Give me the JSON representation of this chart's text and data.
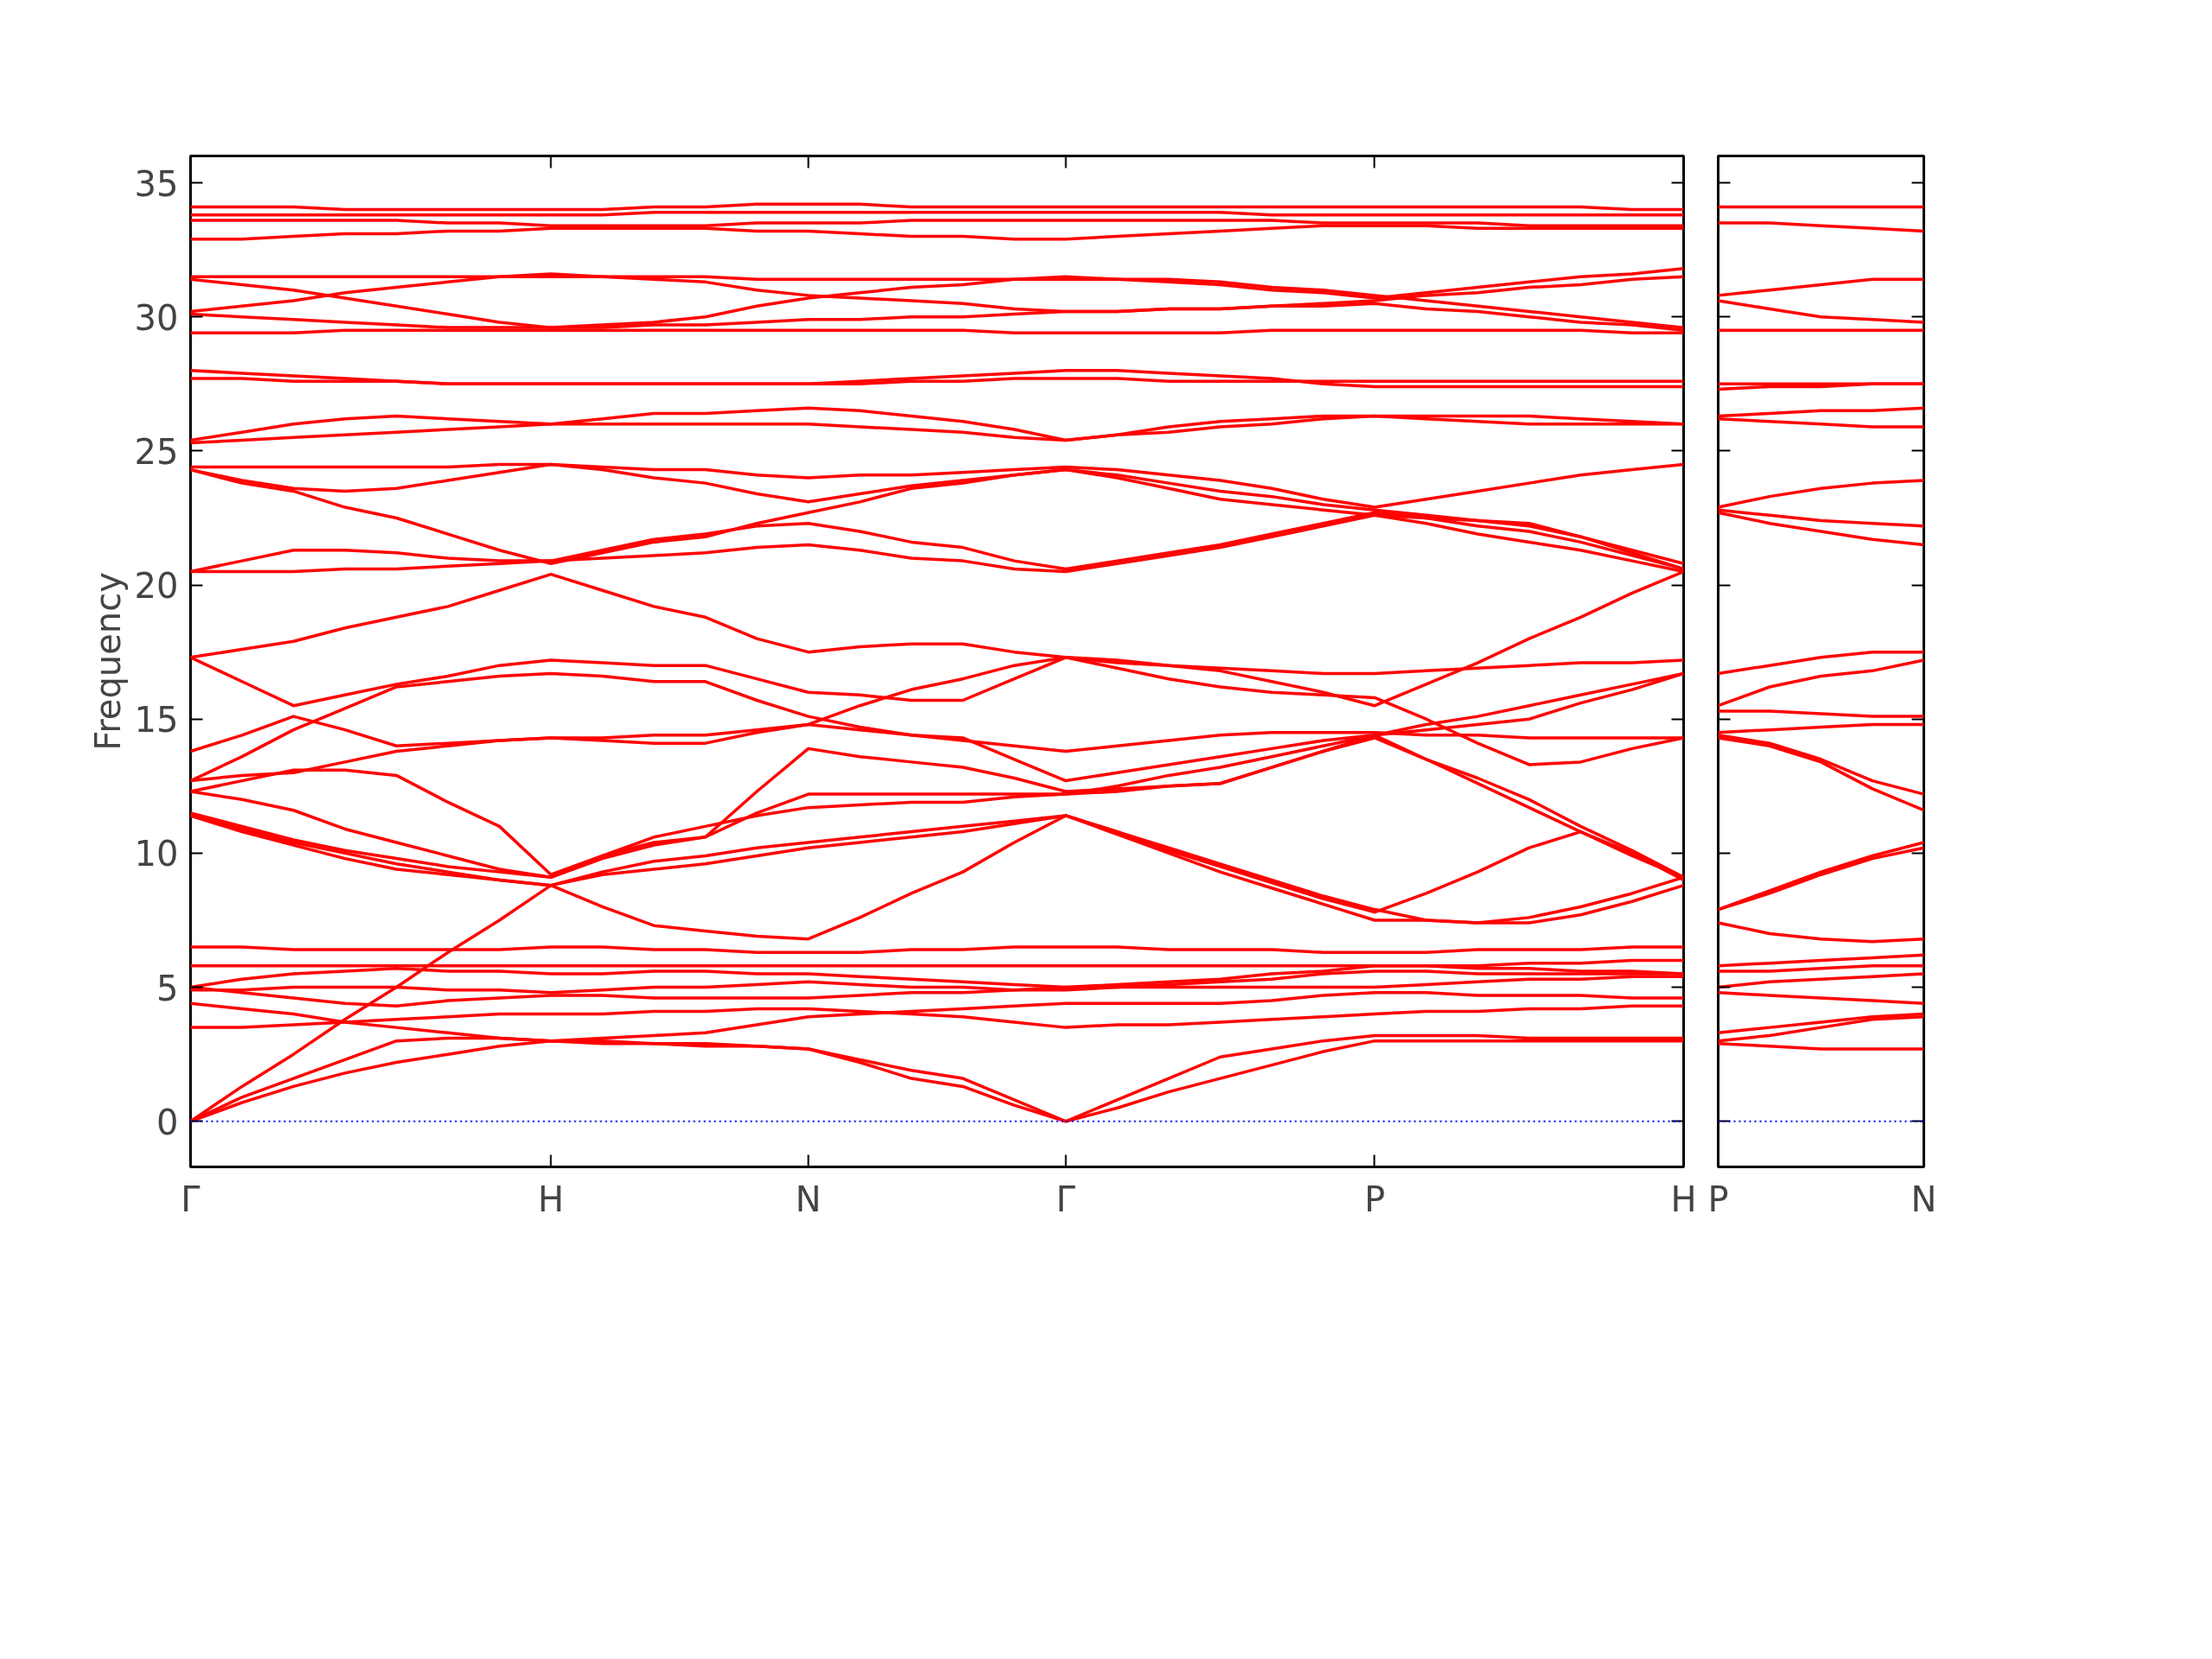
{
  "chart_data": [
    {
      "type": "line",
      "ylabel": "Frequency",
      "ylim": [
        -1.7,
        36
      ],
      "yticks": [
        0,
        5,
        10,
        15,
        20,
        25,
        30,
        35
      ],
      "categories": [
        "Γ",
        null,
        null,
        null,
        null,
        null,
        null,
        "H",
        null,
        null,
        null,
        null,
        "N",
        null,
        null,
        null,
        null,
        "Γ",
        null,
        null,
        null,
        null,
        null,
        "P",
        null,
        null,
        null,
        null,
        null,
        "H"
      ],
      "grid": false,
      "line_style": "solid",
      "marker": "none",
      "ref_lines": [
        {
          "axis": "y",
          "value": 0,
          "color": "#0000ff",
          "line_style": "dotted"
        }
      ],
      "series": [
        {
          "color": "#ff0000",
          "values": [
            34.1,
            34.1,
            34.1,
            34.0,
            34.0,
            34.0,
            34.0,
            34.0,
            34.0,
            34.1,
            34.1,
            34.2,
            34.2,
            34.2,
            34.1,
            34.1,
            34.1,
            34.1,
            34.1,
            34.1,
            34.1,
            34.1,
            34.1,
            34.1,
            34.1,
            34.1,
            34.1,
            34.1,
            34.0,
            34.0
          ]
        },
        {
          "color": "#ff0000",
          "values": [
            33.8,
            33.8,
            33.8,
            33.8,
            33.8,
            33.8,
            33.8,
            33.8,
            33.8,
            33.9,
            33.9,
            33.9,
            33.9,
            33.9,
            33.9,
            33.9,
            33.9,
            33.9,
            33.9,
            33.9,
            33.9,
            33.8,
            33.8,
            33.8,
            33.8,
            33.8,
            33.8,
            33.8,
            33.8,
            33.8
          ]
        },
        {
          "color": "#ff0000",
          "values": [
            33.6,
            33.6,
            33.6,
            33.6,
            33.6,
            33.5,
            33.5,
            33.4,
            33.4,
            33.4,
            33.4,
            33.5,
            33.5,
            33.5,
            33.6,
            33.6,
            33.6,
            33.6,
            33.6,
            33.6,
            33.6,
            33.6,
            33.5,
            33.5,
            33.5,
            33.5,
            33.4,
            33.4,
            33.4,
            33.4
          ]
        },
        {
          "color": "#ff0000",
          "values": [
            32.9,
            32.9,
            33.0,
            33.1,
            33.1,
            33.2,
            33.2,
            33.3,
            33.3,
            33.3,
            33.3,
            33.2,
            33.2,
            33.1,
            33.0,
            33.0,
            32.9,
            32.9,
            33.0,
            33.1,
            33.2,
            33.3,
            33.4,
            33.4,
            33.4,
            33.3,
            33.3,
            33.3,
            33.3,
            33.3
          ]
        },
        {
          "color": "#ff0000",
          "values": [
            31.5,
            31.5,
            31.5,
            31.5,
            31.5,
            31.5,
            31.5,
            31.5,
            31.5,
            31.5,
            31.5,
            31.4,
            31.4,
            31.4,
            31.4,
            31.4,
            31.4,
            31.4,
            31.4,
            31.3,
            31.2,
            31.0,
            30.9,
            30.7,
            30.9,
            31.1,
            31.3,
            31.5,
            31.6,
            31.8
          ]
        },
        {
          "color": "#ff0000",
          "values": [
            31.4,
            31.2,
            31.0,
            30.7,
            30.4,
            30.1,
            29.8,
            29.6,
            29.7,
            29.8,
            30.0,
            30.4,
            30.7,
            30.9,
            31.1,
            31.2,
            31.4,
            31.5,
            31.4,
            31.4,
            31.3,
            31.1,
            31.0,
            30.8,
            30.6,
            30.4,
            30.2,
            30.0,
            29.8,
            29.6
          ]
        },
        {
          "color": "#ff0000",
          "values": [
            30.2,
            30.4,
            30.6,
            30.9,
            31.1,
            31.3,
            31.5,
            31.6,
            31.5,
            31.4,
            31.3,
            31.0,
            30.8,
            30.7,
            30.6,
            30.5,
            30.3,
            30.2,
            30.2,
            30.3,
            30.3,
            30.4,
            30.5,
            30.6,
            30.8,
            30.9,
            31.1,
            31.2,
            31.4,
            31.5
          ]
        },
        {
          "color": "#ff0000",
          "values": [
            30.1,
            30.0,
            29.9,
            29.8,
            29.7,
            29.6,
            29.6,
            29.6,
            29.6,
            29.7,
            29.7,
            29.8,
            29.9,
            29.9,
            30.0,
            30.0,
            30.1,
            30.2,
            30.2,
            30.3,
            30.3,
            30.4,
            30.4,
            30.5,
            30.3,
            30.2,
            30.0,
            29.8,
            29.7,
            29.5
          ]
        },
        {
          "color": "#ff0000",
          "values": [
            29.4,
            29.4,
            29.4,
            29.5,
            29.5,
            29.5,
            29.5,
            29.5,
            29.5,
            29.5,
            29.5,
            29.5,
            29.5,
            29.5,
            29.5,
            29.5,
            29.4,
            29.4,
            29.4,
            29.4,
            29.4,
            29.5,
            29.5,
            29.5,
            29.5,
            29.5,
            29.5,
            29.5,
            29.4,
            29.4
          ]
        },
        {
          "color": "#ff0000",
          "values": [
            28.0,
            27.9,
            27.8,
            27.7,
            27.6,
            27.5,
            27.5,
            27.5,
            27.5,
            27.5,
            27.5,
            27.5,
            27.5,
            27.6,
            27.7,
            27.8,
            27.9,
            28.0,
            28.0,
            27.9,
            27.8,
            27.7,
            27.5,
            27.4,
            27.4,
            27.4,
            27.4,
            27.4,
            27.4,
            27.4
          ]
        },
        {
          "color": "#ff0000",
          "values": [
            27.7,
            27.7,
            27.6,
            27.6,
            27.6,
            27.5,
            27.5,
            27.5,
            27.5,
            27.5,
            27.5,
            27.5,
            27.5,
            27.5,
            27.6,
            27.6,
            27.7,
            27.7,
            27.7,
            27.6,
            27.6,
            27.6,
            27.6,
            27.6,
            27.6,
            27.6,
            27.6,
            27.6,
            27.6,
            27.6
          ]
        },
        {
          "color": "#ff0000",
          "values": [
            25.4,
            25.7,
            26.0,
            26.2,
            26.3,
            26.2,
            26.1,
            26.0,
            26.2,
            26.4,
            26.4,
            26.5,
            26.6,
            26.5,
            26.3,
            26.1,
            25.8,
            25.4,
            25.6,
            25.9,
            26.1,
            26.2,
            26.3,
            26.3,
            26.3,
            26.3,
            26.3,
            26.2,
            26.1,
            26.0
          ]
        },
        {
          "color": "#ff0000",
          "values": [
            25.3,
            25.4,
            25.5,
            25.6,
            25.7,
            25.8,
            25.9,
            26.0,
            26.0,
            26.0,
            26.0,
            26.0,
            26.0,
            25.9,
            25.8,
            25.7,
            25.5,
            25.4,
            25.6,
            25.7,
            25.9,
            26.0,
            26.2,
            26.3,
            26.2,
            26.1,
            26.0,
            26.0,
            26.0,
            26.0
          ]
        },
        {
          "color": "#ff0000",
          "values": [
            24.4,
            24.4,
            24.4,
            24.4,
            24.4,
            24.4,
            24.5,
            24.5,
            24.4,
            24.3,
            24.3,
            24.1,
            24.0,
            24.1,
            24.1,
            24.2,
            24.3,
            24.4,
            24.3,
            24.1,
            23.9,
            23.6,
            23.2,
            22.9,
            23.2,
            23.5,
            23.8,
            24.1,
            24.3,
            24.5
          ]
        },
        {
          "color": "#ff0000",
          "values": [
            24.3,
            23.9,
            23.6,
            23.5,
            23.6,
            23.9,
            24.2,
            24.5,
            24.3,
            24.0,
            23.8,
            23.4,
            23.1,
            23.4,
            23.7,
            23.9,
            24.1,
            24.3,
            24.1,
            23.8,
            23.5,
            23.3,
            23.0,
            22.8,
            22.6,
            22.4,
            22.2,
            21.8,
            21.3,
            20.8
          ]
        },
        {
          "color": "#ff0000",
          "values": [
            24.3,
            23.8,
            23.5,
            22.9,
            22.5,
            21.9,
            21.3,
            20.8,
            21.2,
            21.6,
            21.8,
            22.3,
            22.7,
            23.1,
            23.6,
            23.8,
            24.1,
            24.3,
            24.0,
            23.6,
            23.2,
            23.0,
            22.8,
            22.6,
            22.5,
            22.4,
            22.3,
            21.8,
            21.2,
            20.6
          ]
        },
        {
          "color": "#ff0000",
          "values": [
            20.5,
            20.9,
            21.3,
            21.3,
            21.2,
            21.0,
            20.9,
            20.9,
            21.3,
            21.7,
            21.9,
            22.2,
            22.3,
            22.0,
            21.6,
            21.4,
            20.9,
            20.6,
            20.9,
            21.2,
            21.5,
            21.9,
            22.3,
            22.7,
            22.5,
            22.2,
            22.0,
            21.6,
            21.1,
            20.6
          ]
        },
        {
          "color": "#ff0000",
          "values": [
            20.5,
            20.5,
            20.5,
            20.6,
            20.6,
            20.7,
            20.8,
            20.9,
            21.0,
            21.1,
            21.2,
            21.4,
            21.5,
            21.3,
            21.0,
            20.9,
            20.6,
            20.5,
            20.8,
            21.1,
            21.4,
            21.8,
            22.2,
            22.6,
            22.3,
            21.9,
            21.6,
            21.3,
            20.9,
            20.5
          ]
        },
        {
          "color": "#ff0000",
          "values": [
            17.3,
            17.6,
            17.9,
            18.4,
            18.8,
            19.2,
            19.8,
            20.4,
            19.8,
            19.2,
            18.8,
            18.0,
            17.5,
            17.7,
            17.8,
            17.8,
            17.5,
            17.3,
            17.2,
            17.0,
            16.9,
            16.8,
            16.7,
            16.7,
            16.8,
            16.9,
            17.0,
            17.1,
            17.1,
            17.2
          ]
        },
        {
          "color": "#ff0000",
          "values": [
            17.3,
            16.4,
            15.5,
            15.9,
            16.3,
            16.6,
            17.0,
            17.2,
            17.1,
            17.0,
            17.0,
            16.5,
            16.0,
            15.9,
            15.7,
            15.7,
            16.5,
            17.3,
            17.1,
            17.0,
            16.8,
            16.4,
            16.0,
            15.5,
            16.3,
            17.1,
            18.0,
            18.8,
            19.7,
            20.5
          ]
        },
        {
          "color": "#ff0000",
          "values": [
            13.8,
            14.4,
            15.1,
            14.6,
            14.0,
            14.1,
            14.2,
            14.3,
            14.2,
            14.1,
            14.1,
            14.5,
            14.8,
            15.5,
            16.1,
            16.5,
            17.0,
            17.3,
            16.9,
            16.5,
            16.2,
            16.0,
            15.9,
            15.8,
            15.0,
            14.1,
            13.3,
            13.4,
            13.9,
            14.3
          ]
        },
        {
          "color": "#ff0000",
          "values": [
            12.7,
            13.6,
            14.6,
            15.4,
            16.2,
            16.4,
            16.6,
            16.7,
            16.6,
            16.4,
            16.4,
            15.7,
            15.1,
            14.7,
            14.4,
            14.2,
            14.0,
            13.8,
            14.0,
            14.2,
            14.4,
            14.5,
            14.5,
            14.5,
            14.4,
            14.4,
            14.3,
            14.3,
            14.3,
            14.3
          ]
        },
        {
          "color": "#ff0000",
          "values": [
            12.7,
            12.9,
            13.0,
            13.4,
            13.8,
            14.0,
            14.2,
            14.3,
            14.3,
            14.4,
            14.4,
            14.6,
            14.8,
            14.6,
            14.4,
            14.3,
            13.5,
            12.7,
            13.0,
            13.3,
            13.6,
            13.9,
            14.2,
            14.4,
            14.6,
            14.8,
            15.0,
            15.6,
            16.1,
            16.7
          ]
        },
        {
          "color": "#ff0000",
          "values": [
            12.3,
            12.7,
            13.1,
            13.1,
            12.9,
            11.9,
            11.0,
            9.2,
            9.9,
            10.4,
            10.6,
            12.3,
            13.9,
            13.6,
            13.4,
            13.2,
            12.8,
            12.3,
            12.4,
            12.5,
            12.6,
            13.2,
            13.8,
            14.3,
            13.5,
            12.8,
            12.0,
            11.0,
            10.1,
            9.1
          ]
        },
        {
          "color": "#ff0000",
          "values": [
            12.3,
            12.0,
            11.6,
            10.9,
            10.4,
            9.9,
            9.4,
            9.1,
            9.8,
            10.3,
            10.6,
            11.5,
            12.2,
            12.2,
            12.2,
            12.2,
            12.2,
            12.2,
            12.5,
            12.9,
            13.2,
            13.6,
            14.0,
            14.4,
            13.5,
            12.6,
            11.7,
            10.8,
            9.9,
            9.1
          ]
        },
        {
          "color": "#ff0000",
          "values": [
            11.5,
            11.0,
            10.5,
            10.1,
            9.8,
            9.5,
            9.3,
            9.1,
            9.9,
            10.6,
            11.0,
            11.4,
            11.7,
            11.8,
            11.9,
            11.9,
            12.1,
            12.2,
            12.3,
            12.5,
            12.6,
            13.2,
            13.8,
            14.4,
            14.8,
            15.1,
            15.5,
            15.9,
            16.3,
            16.7
          ]
        },
        {
          "color": "#ff0000",
          "values": [
            11.4,
            10.9,
            10.4,
            10.0,
            9.6,
            9.3,
            9.0,
            8.8,
            9.3,
            9.7,
            9.9,
            10.2,
            10.4,
            10.6,
            10.8,
            11.0,
            11.2,
            11.4,
            10.8,
            10.1,
            9.5,
            8.9,
            8.3,
            7.8,
            8.5,
            9.3,
            10.2,
            10.8,
            10.0,
            9.0
          ]
        },
        {
          "color": "#ff0000",
          "values": [
            11.4,
            10.8,
            10.3,
            9.8,
            9.4,
            9.2,
            9.0,
            8.8,
            9.2,
            9.4,
            9.6,
            9.9,
            10.2,
            10.4,
            10.6,
            10.8,
            11.1,
            11.4,
            10.7,
            10.0,
            9.3,
            8.7,
            8.1,
            7.5,
            7.5,
            7.4,
            7.4,
            7.7,
            8.2,
            8.8
          ]
        },
        {
          "color": "#ff0000",
          "values": [
            6.5,
            6.5,
            6.4,
            6.4,
            6.4,
            6.4,
            6.4,
            6.5,
            6.5,
            6.4,
            6.4,
            6.3,
            6.3,
            6.3,
            6.4,
            6.4,
            6.5,
            6.5,
            6.5,
            6.4,
            6.4,
            6.4,
            6.3,
            6.3,
            6.3,
            6.4,
            6.4,
            6.4,
            6.5,
            6.5
          ]
        },
        {
          "color": "#ff0000",
          "values": [
            5.8,
            5.8,
            5.8,
            5.8,
            5.8,
            5.8,
            5.8,
            5.8,
            5.8,
            5.8,
            5.8,
            5.8,
            5.8,
            5.8,
            5.8,
            5.8,
            5.8,
            5.8,
            5.8,
            5.8,
            5.8,
            5.8,
            5.8,
            5.8,
            5.8,
            5.8,
            5.9,
            5.9,
            6.0,
            6.0
          ]
        },
        {
          "color": "#ff0000",
          "values": [
            5.0,
            5.3,
            5.5,
            5.6,
            5.7,
            5.6,
            5.6,
            5.5,
            5.5,
            5.6,
            5.6,
            5.5,
            5.5,
            5.4,
            5.3,
            5.2,
            5.1,
            5.0,
            5.1,
            5.2,
            5.3,
            5.5,
            5.6,
            5.8,
            5.8,
            5.7,
            5.7,
            5.6,
            5.6,
            5.5
          ]
        },
        {
          "color": "#ff0000",
          "values": [
            0,
            1.3,
            2.5,
            3.8,
            5.0,
            6.3,
            7.5,
            8.8,
            8.0,
            7.3,
            7.1,
            6.9,
            6.8,
            7.6,
            8.5,
            9.3,
            10.4,
            11.4,
            10.8,
            10.2,
            9.6,
            9.0,
            8.4,
            7.9,
            7.5,
            7.4,
            7.6,
            8.0,
            8.5,
            9.1
          ]
        },
        {
          "color": "#ff0000",
          "values": [
            0,
            0.7,
            1.3,
            1.8,
            2.2,
            2.5,
            2.8,
            3.0,
            2.9,
            2.9,
            2.8,
            2.8,
            2.7,
            2.2,
            1.6,
            1.3,
            0.6,
            0,
            0.5,
            1.1,
            1.6,
            2.1,
            2.6,
            3.0,
            3.0,
            3.0,
            3.0,
            3.0,
            3.0,
            3.0
          ]
        },
        {
          "color": "#ff0000",
          "values": [
            0,
            0.9,
            1.6,
            2.3,
            3.0,
            3.1,
            3.1,
            3.0,
            3.0,
            2.9,
            2.9,
            2.8,
            2.7,
            2.3,
            1.9,
            1.6,
            0.8,
            0,
            0.8,
            1.6,
            2.4,
            2.7,
            3.0,
            3.2,
            3.2,
            3.2,
            3.1,
            3.1,
            3.1,
            3.1
          ]
        },
        {
          "color": "#ff0000",
          "values": [
            3.5,
            3.5,
            3.6,
            3.7,
            3.8,
            3.9,
            4.0,
            4.0,
            4.0,
            4.1,
            4.1,
            4.2,
            4.2,
            4.1,
            4.0,
            3.9,
            3.7,
            3.5,
            3.6,
            3.6,
            3.7,
            3.8,
            3.9,
            4.0,
            4.1,
            4.1,
            4.2,
            4.2,
            4.3,
            4.3
          ]
        },
        {
          "color": "#ff0000",
          "values": [
            4.4,
            4.2,
            4.0,
            3.7,
            3.5,
            3.3,
            3.1,
            3.0,
            3.1,
            3.2,
            3.3,
            3.6,
            3.9,
            4.0,
            4.1,
            4.2,
            4.3,
            4.4,
            4.4,
            4.4,
            4.4,
            4.5,
            4.7,
            4.8,
            4.8,
            4.7,
            4.7,
            4.7,
            4.6,
            4.6
          ]
        },
        {
          "color": "#ff0000",
          "values": [
            5.0,
            4.8,
            4.6,
            4.4,
            4.3,
            4.5,
            4.6,
            4.7,
            4.7,
            4.6,
            4.6,
            4.6,
            4.6,
            4.7,
            4.8,
            4.8,
            4.9,
            5.0,
            5.0,
            5.0,
            5.0,
            5.0,
            5.0,
            5.0,
            5.1,
            5.2,
            5.3,
            5.3,
            5.4,
            5.4
          ]
        },
        {
          "color": "#ff0000",
          "values": [
            4.9,
            4.9,
            5.0,
            5.0,
            5.0,
            4.9,
            4.9,
            4.8,
            4.9,
            5.0,
            5.0,
            5.1,
            5.2,
            5.1,
            5.0,
            5.0,
            4.9,
            4.9,
            5.0,
            5.1,
            5.2,
            5.3,
            5.5,
            5.6,
            5.6,
            5.5,
            5.5,
            5.5,
            5.5,
            5.5
          ]
        }
      ]
    },
    {
      "type": "line",
      "ylim": [
        -1.7,
        36
      ],
      "yticks": [
        0,
        5,
        10,
        15,
        20,
        25,
        30,
        35
      ],
      "tick_labels": "x",
      "categories": [
        "P",
        null,
        null,
        null,
        "N"
      ],
      "grid": false,
      "line_style": "solid",
      "marker": "none",
      "ref_lines": [
        {
          "axis": "y",
          "value": 0,
          "color": "#0000ff",
          "line_style": "dotted"
        }
      ],
      "series": [
        {
          "color": "#ff0000",
          "values": [
            34.1,
            34.1,
            34.1,
            34.1,
            34.1
          ]
        },
        {
          "color": "#ff0000",
          "values": [
            33.5,
            33.5,
            33.4,
            33.3,
            33.2
          ]
        },
        {
          "color": "#ff0000",
          "values": [
            30.8,
            31.0,
            31.2,
            31.4,
            31.4
          ]
        },
        {
          "color": "#ff0000",
          "values": [
            30.6,
            30.3,
            30.0,
            29.9,
            29.8
          ]
        },
        {
          "color": "#ff0000",
          "values": [
            29.5,
            29.5,
            29.5,
            29.5,
            29.5
          ]
        },
        {
          "color": "#ff0000",
          "values": [
            27.5,
            27.5,
            27.5,
            27.5,
            27.5
          ]
        },
        {
          "color": "#ff0000",
          "values": [
            27.3,
            27.4,
            27.4,
            27.5,
            27.5
          ]
        },
        {
          "color": "#ff0000",
          "values": [
            26.3,
            26.4,
            26.5,
            26.5,
            26.6
          ]
        },
        {
          "color": "#ff0000",
          "values": [
            26.2,
            26.1,
            26.0,
            25.9,
            25.9
          ]
        },
        {
          "color": "#ff0000",
          "values": [
            22.9,
            23.3,
            23.6,
            23.8,
            23.9
          ]
        },
        {
          "color": "#ff0000",
          "values": [
            22.8,
            22.6,
            22.4,
            22.3,
            22.2
          ]
        },
        {
          "color": "#ff0000",
          "values": [
            22.7,
            22.3,
            22.0,
            21.7,
            21.5
          ]
        },
        {
          "color": "#ff0000",
          "values": [
            16.7,
            17.0,
            17.3,
            17.5,
            17.5
          ]
        },
        {
          "color": "#ff0000",
          "values": [
            15.5,
            16.2,
            16.6,
            16.8,
            17.2
          ]
        },
        {
          "color": "#ff0000",
          "values": [
            15.3,
            15.3,
            15.2,
            15.1,
            15.1
          ]
        },
        {
          "color": "#ff0000",
          "values": [
            14.5,
            14.6,
            14.7,
            14.8,
            14.8
          ]
        },
        {
          "color": "#ff0000",
          "values": [
            14.4,
            14.1,
            13.5,
            12.7,
            12.2
          ]
        },
        {
          "color": "#ff0000",
          "values": [
            14.3,
            14.0,
            13.4,
            12.4,
            11.6
          ]
        },
        {
          "color": "#ff0000",
          "values": [
            7.9,
            8.6,
            9.3,
            9.9,
            10.4
          ]
        },
        {
          "color": "#ff0000",
          "values": [
            7.9,
            8.5,
            9.2,
            9.8,
            10.2
          ]
        },
        {
          "color": "#ff0000",
          "values": [
            7.4,
            7.0,
            6.8,
            6.7,
            6.8
          ]
        },
        {
          "color": "#ff0000",
          "values": [
            5.8,
            5.9,
            6.0,
            6.1,
            6.2
          ]
        },
        {
          "color": "#ff0000",
          "values": [
            5.6,
            5.6,
            5.7,
            5.8,
            5.8
          ]
        },
        {
          "color": "#ff0000",
          "values": [
            5.0,
            5.2,
            5.3,
            5.4,
            5.5
          ]
        },
        {
          "color": "#ff0000",
          "values": [
            4.8,
            4.7,
            4.6,
            4.5,
            4.4
          ]
        },
        {
          "color": "#ff0000",
          "values": [
            3.3,
            3.5,
            3.7,
            3.9,
            4.0
          ]
        },
        {
          "color": "#ff0000",
          "values": [
            3.0,
            3.2,
            3.5,
            3.8,
            3.9
          ]
        },
        {
          "color": "#ff0000",
          "values": [
            2.9,
            2.8,
            2.7,
            2.7,
            2.7
          ]
        }
      ]
    }
  ]
}
